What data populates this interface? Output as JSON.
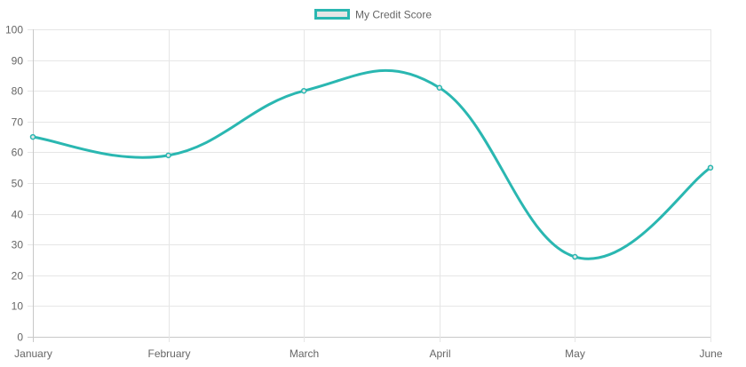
{
  "chart_data": {
    "type": "line",
    "categories": [
      "January",
      "February",
      "March",
      "April",
      "May",
      "June"
    ],
    "series": [
      {
        "name": "My Credit Score",
        "values": [
          65,
          59,
          80,
          81,
          26,
          55
        ],
        "color": "#2ab7b1",
        "fill_color": "#e6e6e6"
      }
    ],
    "ylim": [
      0,
      100
    ],
    "y_ticks": [
      0,
      10,
      20,
      30,
      40,
      50,
      60,
      70,
      80,
      90,
      100
    ],
    "grid": true,
    "smooth": true,
    "legend_position": "top-center",
    "title": "",
    "xlabel": "",
    "ylabel": ""
  }
}
